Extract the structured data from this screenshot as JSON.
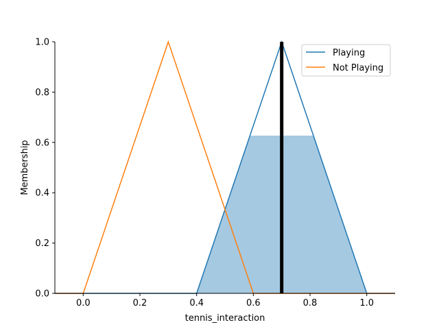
{
  "chart_data": {
    "type": "line",
    "xlabel": "tennis_interaction",
    "ylabel": "Membership",
    "xlim": [
      -0.1,
      1.1
    ],
    "ylim": [
      0.0,
      1.0
    ],
    "x_ticks": [
      "0.0",
      "0.2",
      "0.4",
      "0.6",
      "0.8",
      "1.0"
    ],
    "y_ticks": [
      "0.0",
      "0.2",
      "0.4",
      "0.6",
      "0.8",
      "1.0"
    ],
    "series": [
      {
        "name": "Playing",
        "color": "#1f77b4",
        "x": [
          -0.1,
          0.4,
          0.7,
          1.0,
          1.1
        ],
        "y": [
          0.0,
          0.0,
          1.0,
          0.0,
          0.0
        ]
      },
      {
        "name": "Not Playing",
        "color": "#ff7f0e",
        "x": [
          -0.1,
          0.0,
          0.3,
          0.6,
          1.1
        ],
        "y": [
          0.0,
          0.0,
          1.0,
          0.0,
          0.0
        ]
      }
    ],
    "filled_area": {
      "color": "#1f77b4",
      "opacity": 0.4,
      "x": [
        0.4,
        0.588,
        0.812,
        1.0
      ],
      "y": [
        0.0,
        0.627,
        0.627,
        0.0
      ]
    },
    "vertical_line": {
      "x": 0.7,
      "color": "#000000"
    },
    "legend_position": "top-right",
    "grid": false
  }
}
